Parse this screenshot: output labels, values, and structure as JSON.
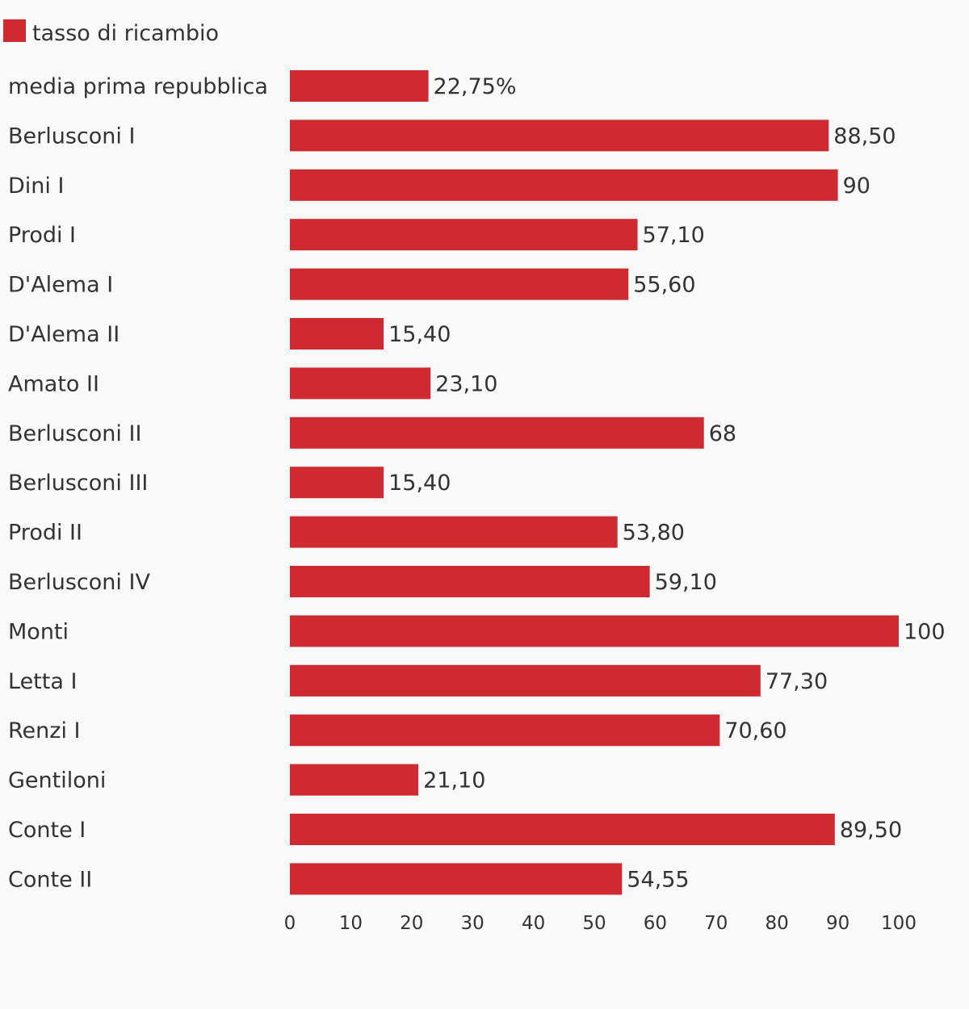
{
  "chart_data": {
    "type": "bar",
    "orientation": "horizontal",
    "legend": {
      "position": "top-left",
      "label": "tasso di ricambio"
    },
    "categories": [
      "media prima repubblica",
      "Berlusconi I",
      "Dini I",
      "Prodi I",
      "D'Alema I",
      "D'Alema II",
      "Amato II",
      "Berlusconi II",
      "Berlusconi III",
      "Prodi II",
      "Berlusconi IV",
      "Monti",
      "Letta I",
      "Renzi I",
      "Gentiloni",
      "Conte I",
      "Conte II"
    ],
    "series": [
      {
        "name": "tasso di ricambio",
        "color": "#ce2a30",
        "values": [
          22.75,
          88.5,
          90,
          57.1,
          55.6,
          15.4,
          23.1,
          68,
          15.4,
          53.8,
          59.1,
          100,
          77.3,
          70.6,
          21.1,
          89.5,
          54.55
        ]
      }
    ],
    "data_labels": [
      "22,75%",
      "88,50",
      "90",
      "57,10",
      "55,60",
      "15,40",
      "23,10",
      "68",
      "15,40",
      "53,80",
      "59,10",
      "100",
      "77,30",
      "70,60",
      "21,10",
      "89,50",
      "54,55"
    ],
    "xlim": [
      0,
      100
    ],
    "xticks": [
      0,
      10,
      20,
      30,
      40,
      50,
      60,
      70,
      80,
      90,
      100
    ],
    "xtick_labels": [
      "0",
      "10",
      "20",
      "30",
      "40",
      "50",
      "60",
      "70",
      "80",
      "90",
      "100"
    ],
    "grid": false,
    "title": "",
    "xlabel": "",
    "ylabel": ""
  }
}
